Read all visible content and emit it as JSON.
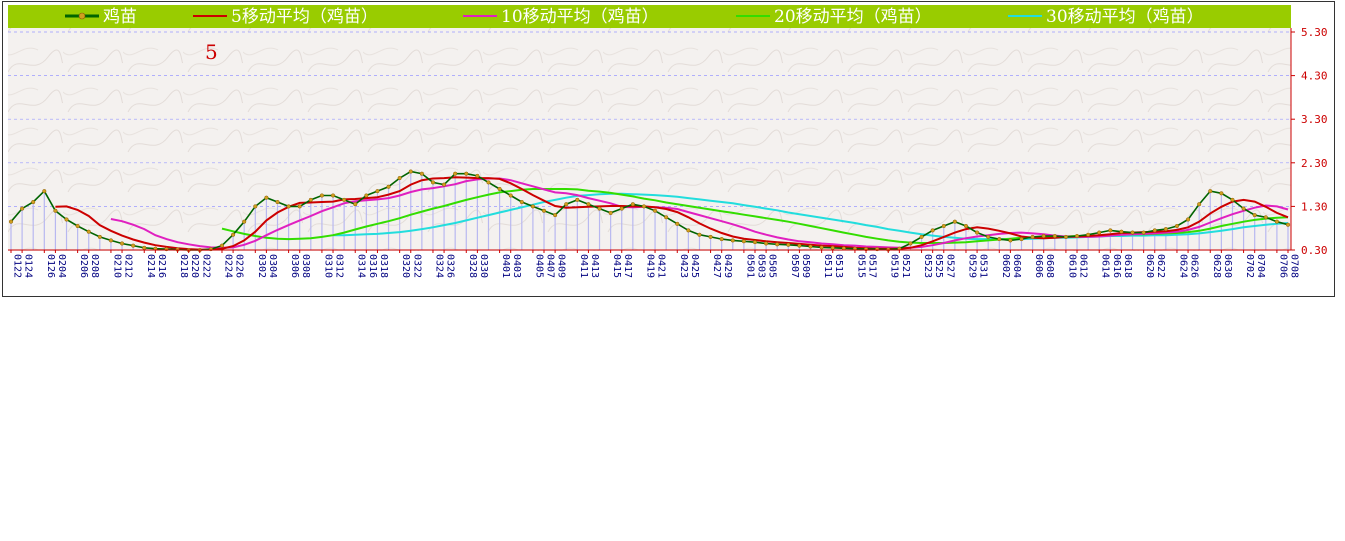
{
  "chart_data": {
    "type": "line",
    "title": "",
    "xlabel": "",
    "ylabel": "",
    "ylim": [
      0.3,
      5.3
    ],
    "yticks": [
      "0.30",
      "1.30",
      "2.30",
      "3.30",
      "4.30",
      "5.30"
    ],
    "grid": true,
    "legend_position": "top",
    "annotation": "5",
    "x_tick_labels": [
      "0122",
      "0124",
      "0126",
      "0204",
      "0206",
      "0208",
      "0210",
      "0212",
      "0214",
      "0216",
      "0218",
      "0220",
      "0222",
      "0224",
      "0226",
      "0302",
      "0304",
      "0306",
      "0308",
      "0310",
      "0312",
      "0314",
      "0316",
      "0318",
      "0320",
      "0322",
      "0324",
      "0326",
      "0328",
      "0330",
      "0401",
      "0403",
      "0405",
      "0407",
      "0409",
      "0411",
      "0413",
      "0415",
      "0417",
      "0419",
      "0421",
      "0423",
      "0425",
      "0427",
      "0429",
      "0501",
      "0503",
      "0505",
      "0507",
      "0509",
      "0511",
      "0513",
      "0515",
      "0517",
      "0519",
      "0521",
      "0523",
      "0525",
      "0527",
      "0529",
      "0531",
      "0602",
      "0604",
      "0606",
      "0608",
      "0610",
      "0612",
      "0614",
      "0616",
      "0618",
      "0620",
      "0622",
      "0624",
      "0626",
      "0628",
      "0630",
      "0702",
      "0704",
      "0706",
      "0708"
    ],
    "series": [
      {
        "name": "鸡苗",
        "color": "#006400",
        "style": "line-markers",
        "bars": true,
        "values": [
          0.95,
          1.25,
          1.4,
          1.65,
          1.2,
          1.0,
          0.85,
          0.72,
          0.6,
          0.52,
          0.45,
          0.4,
          0.35,
          0.33,
          0.32,
          0.31,
          0.3,
          0.3,
          0.32,
          0.4,
          0.65,
          0.95,
          1.3,
          1.5,
          1.4,
          1.3,
          1.3,
          1.45,
          1.55,
          1.55,
          1.45,
          1.35,
          1.55,
          1.65,
          1.75,
          1.95,
          2.1,
          2.05,
          1.85,
          1.8,
          2.05,
          2.05,
          2.0,
          1.85,
          1.7,
          1.55,
          1.4,
          1.3,
          1.2,
          1.1,
          1.35,
          1.45,
          1.35,
          1.25,
          1.15,
          1.25,
          1.35,
          1.3,
          1.2,
          1.05,
          0.9,
          0.75,
          0.65,
          0.6,
          0.55,
          0.52,
          0.5,
          0.48,
          0.45,
          0.43,
          0.42,
          0.4,
          0.38,
          0.36,
          0.35,
          0.34,
          0.33,
          0.32,
          0.32,
          0.31,
          0.33,
          0.45,
          0.6,
          0.75,
          0.85,
          0.95,
          0.85,
          0.7,
          0.6,
          0.55,
          0.52,
          0.55,
          0.6,
          0.62,
          0.62,
          0.6,
          0.62,
          0.65,
          0.7,
          0.75,
          0.72,
          0.7,
          0.7,
          0.75,
          0.78,
          0.85,
          1.0,
          1.35,
          1.65,
          1.6,
          1.45,
          1.25,
          1.1,
          1.05,
          0.95,
          0.88
        ]
      },
      {
        "name": "5移动平均（鸡苗）",
        "color": "#cc0000",
        "values": [
          null,
          null,
          null,
          null,
          1.29,
          1.3,
          1.22,
          1.08,
          0.87,
          0.74,
          0.63,
          0.54,
          0.47,
          0.41,
          0.37,
          0.34,
          0.32,
          0.31,
          0.31,
          0.33,
          0.39,
          0.52,
          0.72,
          0.98,
          1.16,
          1.29,
          1.38,
          1.39,
          1.4,
          1.41,
          1.46,
          1.47,
          1.49,
          1.51,
          1.57,
          1.65,
          1.8,
          1.9,
          1.94,
          1.95,
          1.97,
          1.96,
          1.95,
          1.95,
          1.93,
          1.83,
          1.7,
          1.56,
          1.43,
          1.31,
          1.27,
          1.28,
          1.29,
          1.3,
          1.31,
          1.31,
          1.3,
          1.3,
          1.28,
          1.24,
          1.17,
          1.05,
          0.91,
          0.79,
          0.69,
          0.61,
          0.56,
          0.53,
          0.5,
          0.48,
          0.46,
          0.44,
          0.42,
          0.4,
          0.39,
          0.37,
          0.35,
          0.34,
          0.33,
          0.33,
          0.33,
          0.35,
          0.41,
          0.5,
          0.6,
          0.7,
          0.78,
          0.82,
          0.79,
          0.74,
          0.68,
          0.61,
          0.58,
          0.57,
          0.58,
          0.6,
          0.61,
          0.62,
          0.64,
          0.66,
          0.69,
          0.7,
          0.71,
          0.72,
          0.73,
          0.76,
          0.82,
          0.95,
          1.14,
          1.29,
          1.41,
          1.45,
          1.41,
          1.29,
          1.15,
          1.05
        ]
      },
      {
        "name": "10移动平均（鸡苗）",
        "color": "#e020c0",
        "values": [
          null,
          null,
          null,
          null,
          null,
          null,
          null,
          null,
          null,
          1.01,
          0.96,
          0.88,
          0.78,
          0.64,
          0.55,
          0.48,
          0.43,
          0.39,
          0.36,
          0.35,
          0.36,
          0.42,
          0.51,
          0.64,
          0.76,
          0.87,
          0.98,
          1.08,
          1.19,
          1.28,
          1.37,
          1.42,
          1.44,
          1.46,
          1.49,
          1.55,
          1.63,
          1.69,
          1.72,
          1.76,
          1.81,
          1.88,
          1.92,
          1.94,
          1.94,
          1.9,
          1.83,
          1.76,
          1.69,
          1.62,
          1.6,
          1.56,
          1.49,
          1.43,
          1.37,
          1.29,
          1.28,
          1.29,
          1.28,
          1.27,
          1.24,
          1.17,
          1.1,
          1.03,
          0.96,
          0.89,
          0.81,
          0.72,
          0.65,
          0.59,
          0.54,
          0.5,
          0.48,
          0.45,
          0.43,
          0.41,
          0.4,
          0.38,
          0.37,
          0.36,
          0.35,
          0.35,
          0.37,
          0.41,
          0.46,
          0.52,
          0.57,
          0.61,
          0.64,
          0.67,
          0.69,
          0.7,
          0.68,
          0.66,
          0.63,
          0.61,
          0.6,
          0.6,
          0.61,
          0.63,
          0.65,
          0.66,
          0.67,
          0.68,
          0.7,
          0.72,
          0.76,
          0.83,
          0.93,
          1.03,
          1.12,
          1.2,
          1.27,
          1.32,
          1.3,
          1.23
        ]
      },
      {
        "name": "20移动平均（鸡苗）",
        "color": "#33dd00",
        "values": [
          null,
          null,
          null,
          null,
          null,
          null,
          null,
          null,
          null,
          null,
          null,
          null,
          null,
          null,
          null,
          null,
          null,
          null,
          null,
          0.79,
          0.73,
          0.67,
          0.62,
          0.58,
          0.56,
          0.55,
          0.56,
          0.57,
          0.6,
          0.64,
          0.7,
          0.77,
          0.84,
          0.9,
          0.96,
          1.03,
          1.11,
          1.18,
          1.25,
          1.31,
          1.38,
          1.45,
          1.51,
          1.57,
          1.62,
          1.65,
          1.68,
          1.7,
          1.7,
          1.7,
          1.7,
          1.69,
          1.66,
          1.64,
          1.61,
          1.57,
          1.53,
          1.48,
          1.44,
          1.39,
          1.35,
          1.31,
          1.27,
          1.23,
          1.19,
          1.15,
          1.11,
          1.07,
          1.03,
          0.99,
          0.95,
          0.9,
          0.85,
          0.8,
          0.75,
          0.7,
          0.65,
          0.6,
          0.56,
          0.52,
          0.49,
          0.47,
          0.46,
          0.46,
          0.46,
          0.47,
          0.48,
          0.5,
          0.52,
          0.54,
          0.56,
          0.58,
          0.59,
          0.59,
          0.6,
          0.61,
          0.62,
          0.62,
          0.63,
          0.64,
          0.65,
          0.66,
          0.66,
          0.67,
          0.68,
          0.69,
          0.71,
          0.74,
          0.79,
          0.85,
          0.9,
          0.95,
          0.99,
          1.02,
          1.04,
          1.05
        ]
      },
      {
        "name": "30移动平均（鸡苗）",
        "color": "#22dddd",
        "values": [
          null,
          null,
          null,
          null,
          null,
          null,
          null,
          null,
          null,
          null,
          null,
          null,
          null,
          null,
          null,
          null,
          null,
          null,
          null,
          null,
          null,
          null,
          null,
          null,
          null,
          null,
          null,
          null,
          null,
          0.64,
          0.64,
          0.65,
          0.66,
          0.67,
          0.69,
          0.71,
          0.74,
          0.78,
          0.82,
          0.87,
          0.92,
          0.98,
          1.04,
          1.1,
          1.16,
          1.22,
          1.28,
          1.34,
          1.4,
          1.45,
          1.5,
          1.54,
          1.56,
          1.58,
          1.59,
          1.59,
          1.58,
          1.57,
          1.56,
          1.54,
          1.52,
          1.49,
          1.46,
          1.43,
          1.4,
          1.37,
          1.33,
          1.29,
          1.25,
          1.21,
          1.16,
          1.12,
          1.08,
          1.04,
          1.0,
          0.96,
          0.92,
          0.87,
          0.83,
          0.78,
          0.74,
          0.7,
          0.66,
          0.63,
          0.6,
          0.58,
          0.56,
          0.55,
          0.55,
          0.55,
          0.55,
          0.55,
          0.56,
          0.57,
          0.58,
          0.58,
          0.59,
          0.6,
          0.61,
          0.62,
          0.62,
          0.63,
          0.63,
          0.64,
          0.64,
          0.65,
          0.66,
          0.68,
          0.71,
          0.74,
          0.78,
          0.82,
          0.85,
          0.88,
          0.9,
          0.92
        ]
      }
    ]
  }
}
